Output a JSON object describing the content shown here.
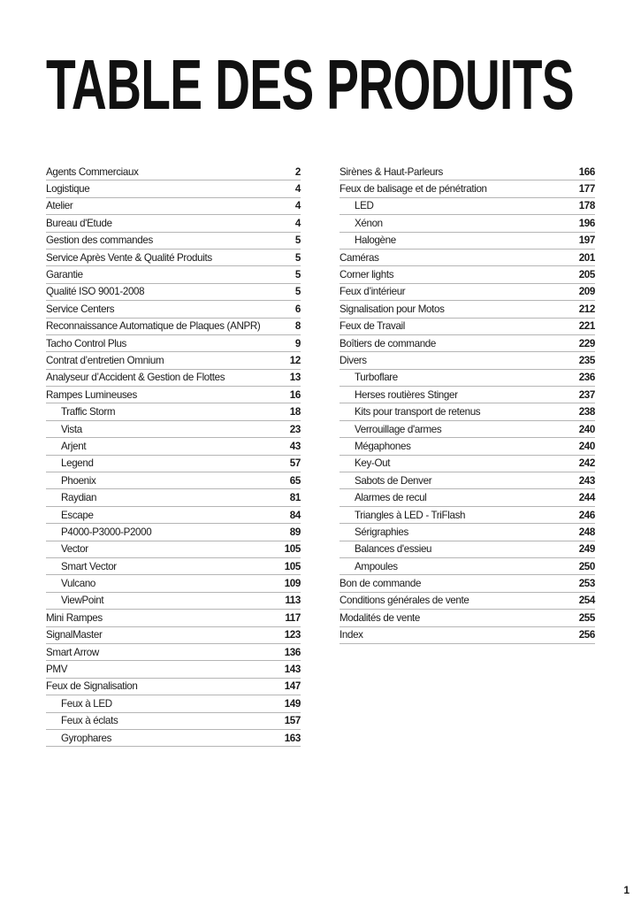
{
  "title": "TABLE DES PRODUITS",
  "page_number": "1",
  "left_column": [
    {
      "label": "Agents Commerciaux",
      "page": "2",
      "sub": false
    },
    {
      "label": "Logistique",
      "page": "4",
      "sub": false
    },
    {
      "label": "Atelier",
      "page": "4",
      "sub": false
    },
    {
      "label": "Bureau d'Etude",
      "page": "4",
      "sub": false
    },
    {
      "label": "Gestion des commandes",
      "page": "5",
      "sub": false
    },
    {
      "label": "Service Après Vente & Qualité Produits",
      "page": "5",
      "sub": false
    },
    {
      "label": "Garantie",
      "page": "5",
      "sub": false
    },
    {
      "label": "Qualité ISO 9001-2008",
      "page": "5",
      "sub": false
    },
    {
      "label": "Service Centers",
      "page": "6",
      "sub": false
    },
    {
      "label": "Reconnaissance Automatique de Plaques (ANPR)",
      "page": "8",
      "sub": false
    },
    {
      "label": "Tacho Control Plus",
      "page": "9",
      "sub": false
    },
    {
      "label": "Contrat d’entretien Omnium",
      "page": "12",
      "sub": false
    },
    {
      "label": "Analyseur d’Accident & Gestion de Flottes",
      "page": "13",
      "sub": false
    },
    {
      "label": "Rampes Lumineuses",
      "page": "16",
      "sub": false
    },
    {
      "label": "Traffic Storm",
      "page": "18",
      "sub": true
    },
    {
      "label": "Vista",
      "page": "23",
      "sub": true
    },
    {
      "label": "Arjent",
      "page": "43",
      "sub": true
    },
    {
      "label": "Legend",
      "page": "57",
      "sub": true
    },
    {
      "label": "Phoenix",
      "page": "65",
      "sub": true
    },
    {
      "label": "Raydian",
      "page": "81",
      "sub": true
    },
    {
      "label": "Escape",
      "page": "84",
      "sub": true
    },
    {
      "label": "P4000-P3000-P2000",
      "page": "89",
      "sub": true
    },
    {
      "label": "Vector",
      "page": "105",
      "sub": true
    },
    {
      "label": "Smart Vector",
      "page": "105",
      "sub": true
    },
    {
      "label": "Vulcano",
      "page": "109",
      "sub": true
    },
    {
      "label": "ViewPoint",
      "page": "113",
      "sub": true
    },
    {
      "label": "Mini Rampes",
      "page": "117",
      "sub": false
    },
    {
      "label": "SignalMaster",
      "page": "123",
      "sub": false
    },
    {
      "label": "Smart Arrow",
      "page": "136",
      "sub": false
    },
    {
      "label": "PMV",
      "page": "143",
      "sub": false
    },
    {
      "label": "Feux de Signalisation",
      "page": "147",
      "sub": false
    },
    {
      "label": "Feux à LED",
      "page": "149",
      "sub": true
    },
    {
      "label": "Feux à éclats",
      "page": "157",
      "sub": true
    },
    {
      "label": "Gyrophares",
      "page": "163",
      "sub": true
    }
  ],
  "right_column": [
    {
      "label": "Sirènes & Haut-Parleurs",
      "page": "166",
      "sub": false
    },
    {
      "label": "Feux de balisage et de pénétration",
      "page": "177",
      "sub": false
    },
    {
      "label": "LED",
      "page": "178",
      "sub": true
    },
    {
      "label": "Xénon",
      "page": "196",
      "sub": true
    },
    {
      "label": "Halogène",
      "page": "197",
      "sub": true
    },
    {
      "label": "Caméras",
      "page": "201",
      "sub": false
    },
    {
      "label": "Corner lights",
      "page": "205",
      "sub": false
    },
    {
      "label": "Feux d’intérieur",
      "page": "209",
      "sub": false
    },
    {
      "label": "Signalisation pour Motos",
      "page": "212",
      "sub": false
    },
    {
      "label": "Feux de Travail",
      "page": "221",
      "sub": false
    },
    {
      "label": "Boîtiers de commande",
      "page": "229",
      "sub": false
    },
    {
      "label": "Divers",
      "page": "235",
      "sub": false
    },
    {
      "label": "Turboflare",
      "page": "236",
      "sub": true
    },
    {
      "label": "Herses routières Stinger",
      "page": "237",
      "sub": true
    },
    {
      "label": "Kits pour transport de retenus",
      "page": "238",
      "sub": true
    },
    {
      "label": "Verrouillage d'armes",
      "page": "240",
      "sub": true
    },
    {
      "label": "Mégaphones",
      "page": "240",
      "sub": true
    },
    {
      "label": "Key-Out",
      "page": "242",
      "sub": true
    },
    {
      "label": "Sabots de Denver",
      "page": "243",
      "sub": true
    },
    {
      "label": "Alarmes de recul",
      "page": "244",
      "sub": true
    },
    {
      "label": "Triangles à LED - TriFlash",
      "page": "246",
      "sub": true
    },
    {
      "label": "Sérigraphies",
      "page": "248",
      "sub": true
    },
    {
      "label": "Balances d'essieu",
      "page": "249",
      "sub": true
    },
    {
      "label": "Ampoules",
      "page": "250",
      "sub": true
    },
    {
      "label": "Bon de commande",
      "page": "253",
      "sub": false
    },
    {
      "label": "Conditions générales de vente",
      "page": "254",
      "sub": false
    },
    {
      "label": "Modalités de vente",
      "page": "255",
      "sub": false
    },
    {
      "label": "Index",
      "page": "256",
      "sub": false
    }
  ]
}
